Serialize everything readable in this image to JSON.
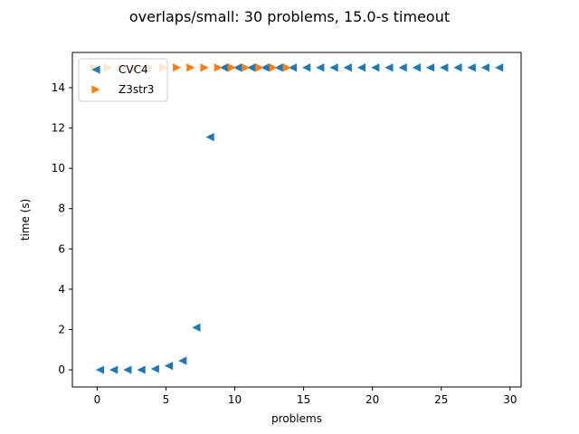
{
  "chart_data": {
    "type": "scatter",
    "title": "overlaps/small: 30 problems, 15.0-s timeout",
    "xlabel": "problems",
    "ylabel": "time (s)",
    "xlim": [
      -1.8,
      30.8
    ],
    "ylim": [
      -0.85,
      15.75
    ],
    "xticks": [
      0,
      5,
      10,
      15,
      20,
      25,
      30
    ],
    "yticks": [
      0,
      2,
      4,
      6,
      8,
      10,
      12,
      14
    ],
    "grid": false,
    "legend_position": "top-left",
    "series": [
      {
        "name": "CVC4",
        "color": "#1f77b4",
        "marker": "triangle-left",
        "points": [
          [
            0.2,
            0.0
          ],
          [
            1.2,
            0.0
          ],
          [
            2.2,
            0.0
          ],
          [
            3.2,
            0.0
          ],
          [
            4.2,
            0.05
          ],
          [
            5.2,
            0.2
          ],
          [
            6.2,
            0.45
          ],
          [
            7.2,
            2.1
          ],
          [
            8.2,
            11.55
          ],
          [
            9.2,
            15.0
          ],
          [
            10.2,
            15.0
          ],
          [
            11.2,
            15.0
          ],
          [
            12.2,
            15.0
          ],
          [
            13.2,
            15.0
          ],
          [
            14.2,
            15.0
          ],
          [
            15.2,
            15.0
          ],
          [
            16.2,
            15.0
          ],
          [
            17.2,
            15.0
          ],
          [
            18.2,
            15.0
          ],
          [
            19.2,
            15.0
          ],
          [
            20.2,
            15.0
          ],
          [
            21.2,
            15.0
          ],
          [
            22.2,
            15.0
          ],
          [
            23.2,
            15.0
          ],
          [
            24.2,
            15.0
          ],
          [
            25.2,
            15.0
          ],
          [
            26.2,
            15.0
          ],
          [
            27.2,
            15.0
          ],
          [
            28.2,
            15.0
          ],
          [
            29.2,
            15.0
          ]
        ]
      },
      {
        "name": "Z3str3",
        "color": "#ff7f0e",
        "marker": "triangle-right",
        "points": [
          [
            -0.2,
            15.0
          ],
          [
            0.8,
            15.0
          ],
          [
            1.8,
            15.0
          ],
          [
            2.8,
            15.0
          ],
          [
            3.8,
            15.0
          ],
          [
            4.8,
            15.0
          ],
          [
            5.8,
            15.0
          ],
          [
            6.8,
            15.0
          ],
          [
            7.8,
            15.0
          ],
          [
            8.8,
            15.0
          ],
          [
            9.8,
            15.0
          ],
          [
            10.8,
            15.0
          ],
          [
            11.8,
            15.0
          ],
          [
            12.8,
            15.0
          ],
          [
            13.8,
            15.0
          ]
        ]
      }
    ]
  }
}
